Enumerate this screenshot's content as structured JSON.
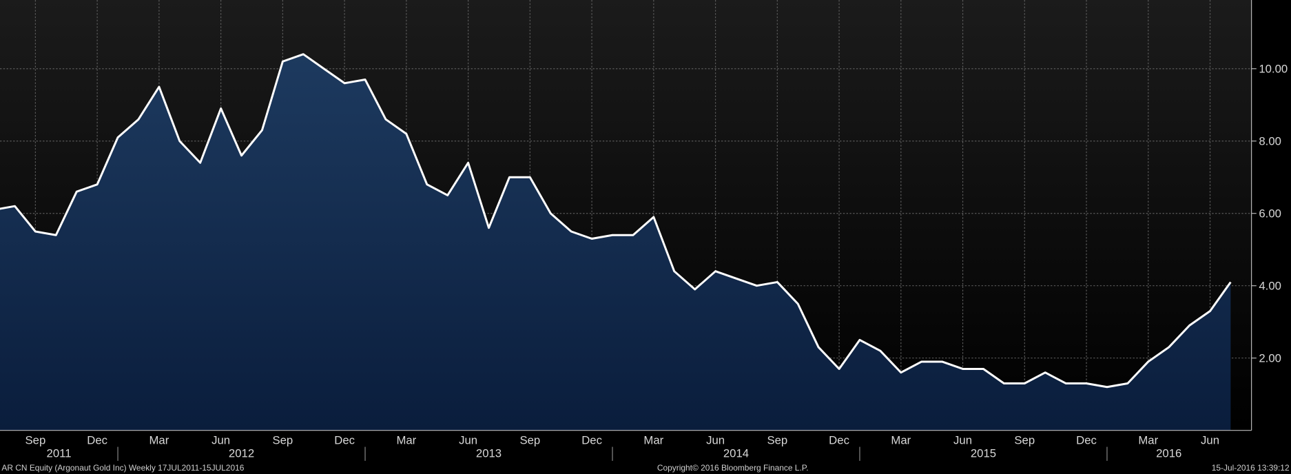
{
  "chart_data": {
    "type": "area",
    "x": [
      "2011-07",
      "2011-08",
      "2011-09",
      "2011-10",
      "2011-11",
      "2011-12",
      "2012-01",
      "2012-02",
      "2012-03",
      "2012-04",
      "2012-05",
      "2012-06",
      "2012-07",
      "2012-08",
      "2012-09",
      "2012-10",
      "2012-11",
      "2012-12",
      "2013-01",
      "2013-02",
      "2013-03",
      "2013-04",
      "2013-05",
      "2013-06",
      "2013-07",
      "2013-08",
      "2013-09",
      "2013-10",
      "2013-11",
      "2013-12",
      "2014-01",
      "2014-02",
      "2014-03",
      "2014-04",
      "2014-05",
      "2014-06",
      "2014-07",
      "2014-08",
      "2014-09",
      "2014-10",
      "2014-11",
      "2014-12",
      "2015-01",
      "2015-02",
      "2015-03",
      "2015-04",
      "2015-05",
      "2015-06",
      "2015-07",
      "2015-08",
      "2015-09",
      "2015-10",
      "2015-11",
      "2015-12",
      "2016-01",
      "2016-02",
      "2016-03",
      "2016-04",
      "2016-05",
      "2016-06",
      "2016-07"
    ],
    "series": [
      {
        "name": "AR CN Equity",
        "color": "#ffffff",
        "values": [
          6.1,
          6.2,
          5.5,
          5.4,
          6.6,
          6.8,
          8.1,
          8.6,
          9.5,
          8.0,
          7.4,
          8.9,
          7.6,
          8.3,
          10.2,
          10.4,
          10.0,
          9.6,
          9.7,
          8.6,
          8.2,
          6.8,
          6.5,
          7.4,
          5.6,
          7.0,
          7.0,
          6.0,
          5.5,
          5.3,
          5.4,
          5.4,
          5.9,
          4.4,
          3.9,
          4.4,
          4.2,
          4.0,
          4.1,
          3.5,
          2.3,
          1.7,
          2.5,
          2.2,
          1.6,
          1.9,
          1.9,
          1.7,
          1.7,
          1.3,
          1.3,
          1.6,
          1.3,
          1.3,
          1.2,
          1.3,
          1.9,
          2.3,
          2.9,
          3.3,
          4.1
        ]
      }
    ],
    "ylim": [
      0,
      11.9
    ],
    "yticks": [
      {
        "value": 2,
        "label": "2.00"
      },
      {
        "value": 4,
        "label": "4.00"
      },
      {
        "value": 6,
        "label": "6.00"
      },
      {
        "value": 8,
        "label": "8.00"
      },
      {
        "value": 10,
        "label": "10.00"
      }
    ],
    "xticks": [
      {
        "value": "2011-09",
        "label": "Sep"
      },
      {
        "value": "2011-12",
        "label": "Dec"
      },
      {
        "value": "2012-03",
        "label": "Mar"
      },
      {
        "value": "2012-06",
        "label": "Jun"
      },
      {
        "value": "2012-09",
        "label": "Sep"
      },
      {
        "value": "2012-12",
        "label": "Dec"
      },
      {
        "value": "2013-03",
        "label": "Mar"
      },
      {
        "value": "2013-06",
        "label": "Jun"
      },
      {
        "value": "2013-09",
        "label": "Sep"
      },
      {
        "value": "2013-12",
        "label": "Dec"
      },
      {
        "value": "2014-03",
        "label": "Mar"
      },
      {
        "value": "2014-06",
        "label": "Jun"
      },
      {
        "value": "2014-09",
        "label": "Sep"
      },
      {
        "value": "2014-12",
        "label": "Dec"
      },
      {
        "value": "2015-03",
        "label": "Mar"
      },
      {
        "value": "2015-06",
        "label": "Jun"
      },
      {
        "value": "2015-09",
        "label": "Sep"
      },
      {
        "value": "2015-12",
        "label": "Dec"
      },
      {
        "value": "2016-03",
        "label": "Mar"
      },
      {
        "value": "2016-06",
        "label": "Jun"
      }
    ],
    "year_labels": [
      "2011",
      "2012",
      "2013",
      "2014",
      "2015",
      "2016"
    ],
    "grid": true,
    "footer_left": "AR CN Equity (Argonaut Gold Inc)  Weekly 17JUL2011-15JUL2016",
    "footer_center": "Copyright© 2016 Bloomberg Finance L.P.",
    "footer_right": "15-Jul-2016 13:39:12"
  }
}
